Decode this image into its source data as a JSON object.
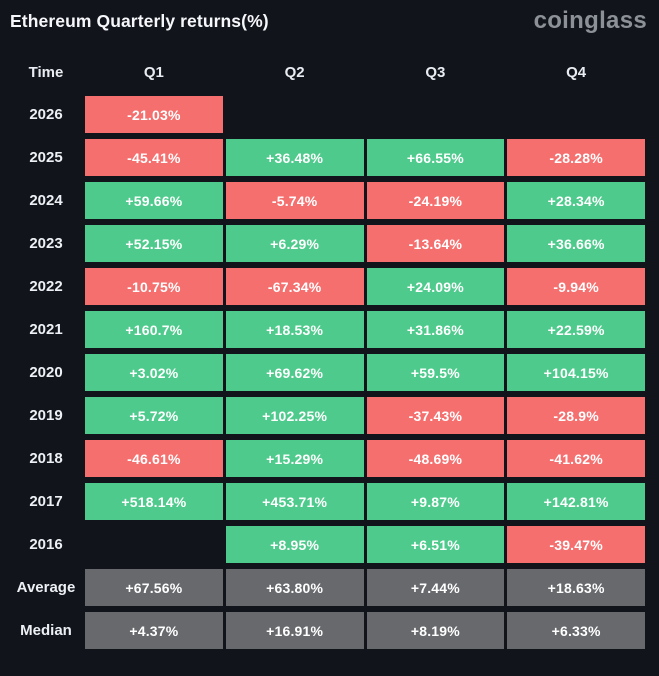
{
  "header": {
    "title": "Ethereum Quarterly returns(%)",
    "logo_text": "coinglass"
  },
  "colors": {
    "background": "#12141b",
    "positive": "#4ecb8c",
    "negative": "#f66f6f",
    "summary": "#67696d",
    "text": "#ffffff",
    "logo": "#8c9097"
  },
  "chart_data": {
    "type": "table",
    "title": "Ethereum Quarterly returns(%)",
    "columns": [
      "Time",
      "Q1",
      "Q2",
      "Q3",
      "Q4"
    ],
    "rows": [
      {
        "label": "2026",
        "summary": false,
        "values": [
          "-21.03%",
          null,
          null,
          null
        ]
      },
      {
        "label": "2025",
        "summary": false,
        "values": [
          "-45.41%",
          "+36.48%",
          "+66.55%",
          "-28.28%"
        ]
      },
      {
        "label": "2024",
        "summary": false,
        "values": [
          "+59.66%",
          "-5.74%",
          "-24.19%",
          "+28.34%"
        ]
      },
      {
        "label": "2023",
        "summary": false,
        "values": [
          "+52.15%",
          "+6.29%",
          "-13.64%",
          "+36.66%"
        ]
      },
      {
        "label": "2022",
        "summary": false,
        "values": [
          "-10.75%",
          "-67.34%",
          "+24.09%",
          "-9.94%"
        ]
      },
      {
        "label": "2021",
        "summary": false,
        "values": [
          "+160.7%",
          "+18.53%",
          "+31.86%",
          "+22.59%"
        ]
      },
      {
        "label": "2020",
        "summary": false,
        "values": [
          "+3.02%",
          "+69.62%",
          "+59.5%",
          "+104.15%"
        ]
      },
      {
        "label": "2019",
        "summary": false,
        "values": [
          "+5.72%",
          "+102.25%",
          "-37.43%",
          "-28.9%"
        ]
      },
      {
        "label": "2018",
        "summary": false,
        "values": [
          "-46.61%",
          "+15.29%",
          "-48.69%",
          "-41.62%"
        ]
      },
      {
        "label": "2017",
        "summary": false,
        "values": [
          "+518.14%",
          "+453.71%",
          "+9.87%",
          "+142.81%"
        ]
      },
      {
        "label": "2016",
        "summary": false,
        "values": [
          null,
          "+8.95%",
          "+6.51%",
          "-39.47%"
        ]
      },
      {
        "label": "Average",
        "summary": true,
        "values": [
          "+67.56%",
          "+63.80%",
          "+7.44%",
          "+18.63%"
        ]
      },
      {
        "label": "Median",
        "summary": true,
        "values": [
          "+4.37%",
          "+16.91%",
          "+8.19%",
          "+6.33%"
        ]
      }
    ]
  }
}
